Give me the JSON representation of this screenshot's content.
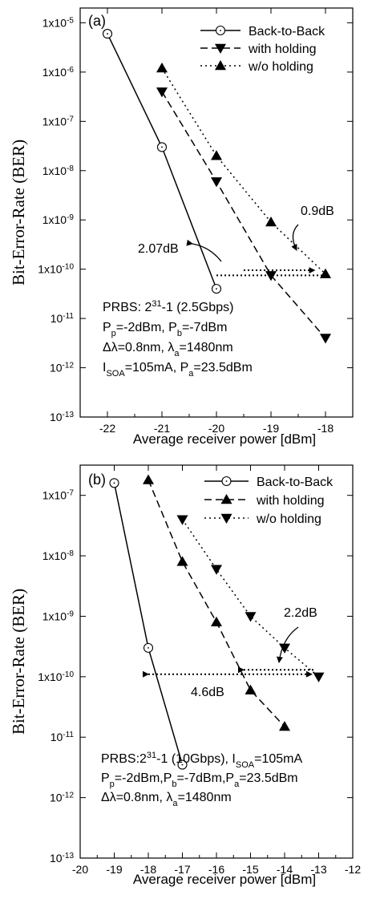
{
  "chart_data": [
    {
      "type": "line",
      "panel_label": "(a)",
      "xlabel": "Average receiver power [dBm]",
      "ylabel": "Bit-Error-Rate (BER)",
      "xlim": [
        -22.5,
        -17.5
      ],
      "ylim_exp": [
        -13,
        -4.7
      ],
      "y_scale": "log",
      "x_ticks": [
        -22,
        -21,
        -20,
        -19,
        -18
      ],
      "y_ticks_exp": [
        -5,
        -6,
        -7,
        -8,
        -9,
        -10,
        -11,
        -12,
        -13
      ],
      "legend_placement": "top-right",
      "series": [
        {
          "name": "Back-to-Back",
          "marker": "circle",
          "dash": "solid",
          "x": [
            -22,
            -21,
            -20
          ],
          "y": [
            6e-06,
            3e-08,
            4e-11
          ]
        },
        {
          "name": "with holding",
          "marker": "triangle-down",
          "dash": "dashed",
          "x": [
            -21,
            -20,
            -19,
            -18
          ],
          "y": [
            4e-07,
            6e-09,
            7.5e-11,
            4e-12
          ]
        },
        {
          "name": "w/o holding",
          "marker": "triangle-up",
          "dash": "dotted",
          "x": [
            -21,
            -20,
            -19,
            -18
          ],
          "y": [
            1.2e-06,
            2e-08,
            9e-10,
            8e-11
          ]
        }
      ],
      "annotations": [
        {
          "text": "0.9dB"
        },
        {
          "text": "2.07dB"
        }
      ],
      "info_lines": [
        [
          {
            "t": "PRBS: 2"
          },
          {
            "t": "31",
            "s": "sup"
          },
          {
            "t": "-1 (2.5Gbps)"
          }
        ],
        [
          {
            "t": "P"
          },
          {
            "t": "p",
            "s": "sub"
          },
          {
            "t": "=-2dBm, P"
          },
          {
            "t": "b",
            "s": "sub"
          },
          {
            "t": "=-7dBm"
          }
        ],
        [
          {
            "t": "Δλ=0.8nm, λ"
          },
          {
            "t": "a",
            "s": "sub"
          },
          {
            "t": "=1480nm"
          }
        ],
        [
          {
            "t": "I"
          },
          {
            "t": "SOA",
            "s": "sub"
          },
          {
            "t": "=105mA, P"
          },
          {
            "t": "a",
            "s": "sub"
          },
          {
            "t": "=23.5dBm"
          }
        ]
      ]
    },
    {
      "type": "line",
      "panel_label": "(b)",
      "xlabel": "Average receiver power [dBm]",
      "ylabel": "Bit-Error-Rate (BER)",
      "xlim": [
        -20,
        -12
      ],
      "ylim_exp": [
        -13,
        -6.5
      ],
      "y_scale": "log",
      "x_ticks": [
        -20,
        -19,
        -18,
        -17,
        -16,
        -15,
        -14,
        -13,
        -12
      ],
      "y_ticks_exp": [
        -7,
        -8,
        -9,
        -10,
        -11,
        -12,
        -13
      ],
      "legend_placement": "top-right",
      "series": [
        {
          "name": "Back-to-Back",
          "marker": "circle",
          "dash": "solid",
          "x": [
            -19,
            -18,
            -17
          ],
          "y": [
            1.6e-07,
            3e-10,
            3.5e-12
          ]
        },
        {
          "name": "with holding",
          "marker": "triangle-up",
          "dash": "dashed",
          "x": [
            -18,
            -17,
            -16,
            -15,
            -14
          ],
          "y": [
            1.8e-07,
            8e-09,
            8e-10,
            6e-11,
            1.5e-11
          ]
        },
        {
          "name": "w/o holding",
          "marker": "triangle-down",
          "dash": "dotted",
          "x": [
            -17,
            -16,
            -15,
            -14,
            -13
          ],
          "y": [
            4e-08,
            6e-09,
            1e-09,
            3e-10,
            1e-10
          ]
        }
      ],
      "annotations": [
        {
          "text": "2.2dB"
        },
        {
          "text": "4.6dB"
        }
      ],
      "info_lines": [
        [
          {
            "t": "PRBS:2"
          },
          {
            "t": "31",
            "s": "sup"
          },
          {
            "t": "-1 (10Gbps), I"
          },
          {
            "t": "SOA",
            "s": "sub"
          },
          {
            "t": "=105mA"
          }
        ],
        [
          {
            "t": "P"
          },
          {
            "t": "p",
            "s": "sub"
          },
          {
            "t": "=-2dBm,P"
          },
          {
            "t": "b",
            "s": "sub"
          },
          {
            "t": "=-7dBm,P"
          },
          {
            "t": "a",
            "s": "sub"
          },
          {
            "t": "=23.5dBm"
          }
        ],
        [
          {
            "t": "Δλ=0.8nm, λ"
          },
          {
            "t": "a",
            "s": "sub"
          },
          {
            "t": "=1480nm"
          }
        ]
      ]
    }
  ]
}
